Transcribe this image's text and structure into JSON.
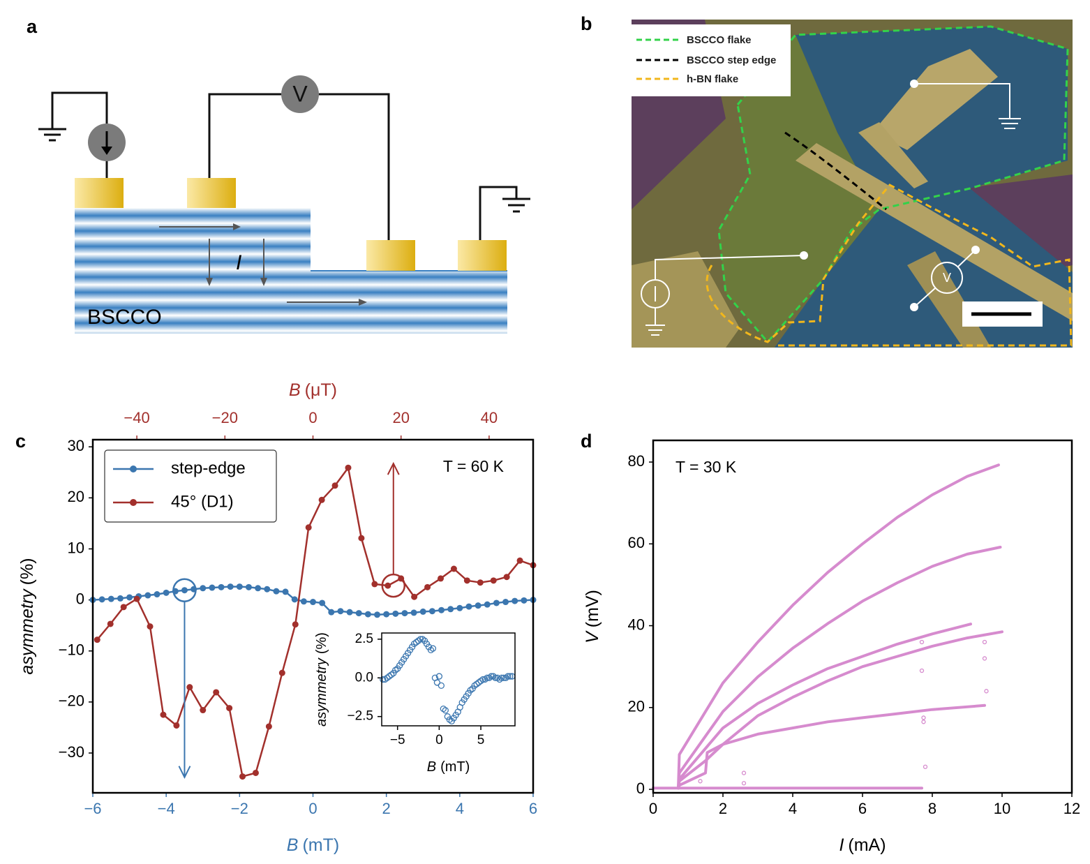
{
  "panel_labels": [
    "a",
    "b",
    "c",
    "d"
  ],
  "schematic": {
    "material": "BSCCO",
    "current": "I",
    "voltmeter": "V"
  },
  "micrograph": {
    "legend": [
      "BSCCO flake",
      "BSCCO step edge",
      "h-BN flake"
    ],
    "voltmeter": "V"
  },
  "chart_data": [
    {
      "type": "line",
      "annotation": "T = 60 K",
      "annotation_corner": "upper right",
      "x_label": {
        "symbol": "B",
        "unit": "(mT)"
      },
      "x2_label": {
        "symbol": "B",
        "unit": "(μT)"
      },
      "y_label": {
        "symbol": "asymmetry",
        "unit": "(%)"
      },
      "xlim": [
        -6,
        6
      ],
      "xticks": [
        {
          "value": -6,
          "label": "−6"
        },
        {
          "value": -4,
          "label": "−4"
        },
        {
          "value": -2,
          "label": "−2"
        },
        0,
        2,
        4,
        6
      ],
      "x2lim": [
        -50,
        50
      ],
      "x2ticks": [
        {
          "value": -40,
          "label": "−40"
        },
        {
          "value": -20,
          "label": "−20"
        },
        0,
        20,
        40
      ],
      "ylim": [
        -37.8,
        31.4
      ],
      "yticks": [
        {
          "value": -30,
          "label": "−30"
        },
        {
          "value": -20,
          "label": "−20"
        },
        {
          "value": -10,
          "label": "−10"
        },
        0,
        10,
        20,
        30
      ],
      "xaxis_color": "#3b76af",
      "x2axis_color": "#a2302c",
      "legend": "upper left",
      "series": [
        {
          "name": "step-edge",
          "color": "#3b76af",
          "marker": "circle",
          "line": true,
          "x": [
            -6,
            -5.75,
            -5.5,
            -5.25,
            -5,
            -4.75,
            -4.5,
            -4.25,
            -4,
            -3.75,
            -3.5,
            -3.25,
            -3,
            -2.75,
            -2.5,
            -2.25,
            -2,
            -1.75,
            -1.5,
            -1.25,
            -1,
            -0.75,
            -0.5,
            -0.25,
            0,
            0.25,
            0.5,
            0.75,
            1,
            1.25,
            1.5,
            1.75,
            2,
            2.25,
            2.5,
            2.75,
            3,
            3.25,
            3.5,
            3.75,
            4,
            4.25,
            4.5,
            4.75,
            5,
            5.25,
            5.5,
            5.75,
            6
          ],
          "values": [
            0.0,
            0.1,
            0.2,
            0.3,
            0.5,
            0.7,
            0.9,
            1.1,
            1.4,
            1.7,
            1.9,
            2.1,
            2.3,
            2.4,
            2.5,
            2.6,
            2.6,
            2.5,
            2.3,
            2.1,
            1.7,
            1.6,
            0.1,
            -0.3,
            -0.4,
            -0.6,
            -2.4,
            -2.2,
            -2.4,
            -2.6,
            -2.8,
            -2.9,
            -2.8,
            -2.7,
            -2.6,
            -2.5,
            -2.3,
            -2.2,
            -2.0,
            -1.8,
            -1.6,
            -1.3,
            -1.1,
            -0.9,
            -0.6,
            -0.4,
            -0.2,
            -0.1,
            0.0
          ]
        },
        {
          "name": "45° (D1)",
          "color": "#a2302c",
          "marker": "circle",
          "line": true,
          "axis": "x2",
          "x": [
            -49,
            -46,
            -43,
            -40,
            -37,
            -34,
            -31,
            -28,
            -25,
            -22,
            -19,
            -16,
            -13,
            -10,
            -7,
            -4,
            -1,
            2,
            5,
            8,
            11,
            14,
            17,
            20,
            23,
            26,
            29,
            32,
            35,
            38,
            41,
            44,
            47,
            50
          ],
          "values": [
            -7.8,
            -4.7,
            -1.4,
            0.2,
            -5.2,
            -22.5,
            -24.6,
            -17.1,
            -21.6,
            -18.1,
            -21.2,
            -34.6,
            -33.9,
            -24.8,
            -14.3,
            -4.8,
            14.2,
            19.6,
            22.4,
            25.9,
            12.1,
            3.1,
            2.8,
            4.2,
            0.6,
            2.5,
            4.2,
            6.1,
            3.8,
            3.4,
            3.8,
            4.5,
            7.7,
            6.8
          ]
        }
      ]
    },
    {
      "type": "line",
      "x_label": {
        "symbol": "B",
        "unit": "(mT)"
      },
      "y_label": {
        "symbol": "asymmetry",
        "unit": "(%)"
      },
      "xlim": [
        -6.9,
        9.1
      ],
      "xticks": [
        {
          "value": -5,
          "label": "−5"
        },
        0,
        5
      ],
      "ylim": [
        -3.1,
        2.9
      ],
      "yticks": [
        {
          "value": -2.5,
          "label": "−2.5"
        },
        {
          "value": 0,
          "label": "0.0"
        },
        2.5
      ],
      "series": [
        {
          "color": "#3b76af",
          "marker": "open-circle",
          "line": false,
          "x": [
            -6.75,
            -6.5,
            -6.25,
            -6,
            -5.75,
            -5.5,
            -5.25,
            -5,
            -4.75,
            -4.5,
            -4.25,
            -4,
            -3.75,
            -3.5,
            -3.25,
            -3,
            -2.75,
            -2.5,
            -2.25,
            -2,
            -1.75,
            -1.5,
            -1.25,
            -1,
            -0.75,
            -0.5,
            -0.25,
            0,
            0.25,
            0.5,
            0.75,
            1,
            1.25,
            1.5,
            1.75,
            2,
            2.25,
            2.5,
            2.75,
            3,
            3.25,
            3.5,
            3.75,
            4,
            4.25,
            4.5,
            4.75,
            5,
            5.25,
            5.5,
            5.75,
            6,
            6.25,
            6.5,
            6.75,
            7,
            7.25,
            7.5,
            7.75,
            8,
            8.25,
            8.5,
            8.75
          ],
          "values": [
            -0.1,
            -0.1,
            0.0,
            0.1,
            0.2,
            0.3,
            0.5,
            0.6,
            0.8,
            1.0,
            1.2,
            1.4,
            1.6,
            1.8,
            2.0,
            2.2,
            2.3,
            2.4,
            2.5,
            2.5,
            2.4,
            2.2,
            2.0,
            1.8,
            1.9,
            0.0,
            -0.3,
            0.1,
            -0.5,
            -2.0,
            -2.1,
            -2.5,
            -2.7,
            -2.8,
            -2.6,
            -2.4,
            -2.2,
            -1.9,
            -1.6,
            -1.4,
            -1.2,
            -1.0,
            -0.8,
            -0.7,
            -0.5,
            -0.4,
            -0.3,
            -0.2,
            -0.1,
            -0.1,
            0.0,
            0.0,
            0.1,
            0.1,
            0.0,
            0.0,
            -0.1,
            0.0,
            0.0,
            0.0,
            0.1,
            0.1,
            0.1
          ]
        }
      ]
    },
    {
      "type": "line",
      "annotation": "T = 30 K",
      "annotation_corner": "upper left",
      "x_label": {
        "symbol": "I",
        "unit": "(mA)"
      },
      "y_label": {
        "symbol": "V",
        "unit": "(mV)"
      },
      "xlim": [
        0,
        12
      ],
      "xticks": [
        0,
        2,
        4,
        6,
        8,
        10,
        12
      ],
      "ylim": [
        -0.85,
        85.3
      ],
      "yticks": [
        0,
        20,
        40,
        60,
        80
      ],
      "series": [
        {
          "color": "#d68bce",
          "marker": null,
          "line": true,
          "x": [
            0.72,
            0.75,
            1,
            1.5,
            2,
            3,
            4,
            5,
            6,
            7,
            8,
            9,
            9.9
          ],
          "values": [
            0.3,
            8.5,
            12,
            19,
            26,
            36,
            45,
            53,
            60,
            66.5,
            72,
            76.5,
            79.3
          ]
        },
        {
          "color": "#d68bce",
          "marker": null,
          "line": true,
          "x": [
            0.72,
            0.75,
            1,
            1.5,
            2,
            3,
            4,
            5,
            6,
            7,
            8,
            9,
            9.95
          ],
          "values": [
            0.3,
            4,
            7,
            13,
            19,
            27.5,
            34.5,
            40.5,
            46,
            50.5,
            54.5,
            57.5,
            59.2
          ]
        },
        {
          "color": "#d68bce",
          "marker": null,
          "line": true,
          "x": [
            0.72,
            0.75,
            1.5,
            2,
            3,
            4,
            5,
            6,
            7,
            8,
            9.1
          ],
          "values": [
            0.3,
            2.5,
            10,
            15,
            21,
            25.5,
            29.5,
            32.5,
            35.5,
            38,
            40.4
          ]
        },
        {
          "color": "#d68bce",
          "marker": null,
          "line": true,
          "x": [
            0.72,
            0.75,
            1.5,
            2,
            3,
            4,
            5,
            6,
            7,
            8,
            9,
            10
          ],
          "values": [
            0.3,
            2,
            7,
            11,
            18,
            22.5,
            26.5,
            30,
            32.5,
            35,
            37,
            38.5
          ]
        },
        {
          "color": "#d68bce",
          "marker": null,
          "line": true,
          "x": [
            0.72,
            0.75,
            1.0,
            1.5,
            1.55,
            2,
            3,
            4,
            5,
            6,
            7,
            8,
            9.5
          ],
          "values": [
            0.3,
            1,
            2,
            4,
            9,
            11,
            13.5,
            15,
            16.5,
            17.5,
            18.5,
            19.5,
            20.5
          ]
        },
        {
          "color": "#d68bce",
          "marker": null,
          "line": true,
          "x": [
            0,
            7.7
          ],
          "values": [
            0.3,
            0.3
          ]
        },
        {
          "color": "#d68bce",
          "marker": "open-circle",
          "line": false,
          "x": [
            1.35,
            2.6,
            2.6,
            7.7,
            7.7,
            7.75,
            7.75,
            7.8,
            9.5,
            9.5,
            9.55
          ],
          "values": [
            2,
            4,
            1.5,
            36,
            29,
            17.5,
            16.5,
            5.5,
            36,
            32,
            24
          ]
        }
      ]
    }
  ]
}
